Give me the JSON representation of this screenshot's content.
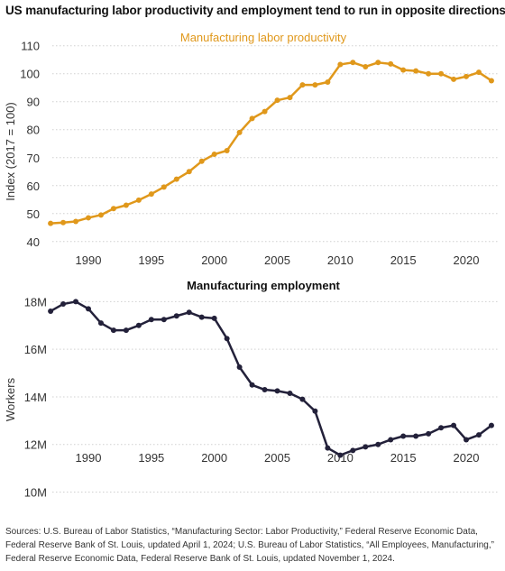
{
  "title": "US manufacturing labor productivity and employment tend to run in opposite directions",
  "sources": "Sources: U.S. Bureau of Labor Statistics, “Manufacturing Sector: Labor Productivity,” Federal Reserve Economic Data, Federal Reserve Bank of St. Louis, updated April 1, 2024; U.S. Bureau of Labor Statistics, “All Employees, Manufacturing,” Federal Reserve Economic Data, Federal Reserve Bank of St. Louis, updated November 1, 2024.",
  "colors": {
    "productivity": "#e0981b",
    "employment": "#23213a"
  },
  "chart_data": [
    {
      "type": "line",
      "title": "Manufacturing labor productivity",
      "xlabel": "",
      "ylabel": "Index (2017 = 100)",
      "ylim": [
        40,
        110
      ],
      "xlim": [
        1986,
        2022
      ],
      "yticks": [
        40,
        50,
        60,
        70,
        80,
        90,
        100,
        110
      ],
      "xticks": [
        1990,
        1995,
        2000,
        2005,
        2010,
        2015,
        2020
      ],
      "grid": true,
      "series": [
        {
          "x": [
            1987,
            1988,
            1989,
            1990,
            1991,
            1992,
            1993,
            1994,
            1995,
            1996,
            1997,
            1998,
            1999,
            2000,
            2001,
            2002,
            2003,
            2004,
            2005,
            2006,
            2007,
            2008,
            2009,
            2010,
            2011,
            2012,
            2013,
            2014,
            2015,
            2016,
            2017,
            2018,
            2019,
            2020,
            2021,
            2022
          ],
          "values": [
            46.5,
            46.8,
            47.2,
            48.5,
            49.5,
            51.8,
            53,
            54.8,
            57,
            59.5,
            62.3,
            65,
            68.7,
            71.2,
            72.5,
            79,
            84,
            86.5,
            90.5,
            91.5,
            96,
            96,
            97,
            103.3,
            104,
            102.5,
            104,
            103.5,
            101.3,
            101,
            100,
            100,
            98,
            99,
            100.5,
            97.5
          ]
        }
      ]
    },
    {
      "type": "line",
      "title": "Manufacturing employment",
      "xlabel": "",
      "ylabel": "Workers",
      "ylim": [
        10,
        18.3
      ],
      "xlim": [
        1986,
        2022
      ],
      "yticks": [
        10,
        12,
        14,
        16,
        18
      ],
      "ytick_labels": [
        "10M",
        "12M",
        "14M",
        "16M",
        "18M"
      ],
      "xticks": [
        1990,
        1995,
        2000,
        2005,
        2010,
        2015,
        2020
      ],
      "grid": true,
      "series": [
        {
          "x": [
            1987,
            1988,
            1989,
            1990,
            1991,
            1992,
            1993,
            1994,
            1995,
            1996,
            1997,
            1998,
            1999,
            2000,
            2001,
            2002,
            2003,
            2004,
            2005,
            2006,
            2007,
            2008,
            2009,
            2010,
            2011,
            2012,
            2013,
            2014,
            2015,
            2016,
            2017,
            2018,
            2019,
            2020,
            2021,
            2022
          ],
          "values": [
            17.6,
            17.9,
            18.0,
            17.7,
            17.1,
            16.8,
            16.8,
            17.0,
            17.25,
            17.25,
            17.4,
            17.55,
            17.35,
            17.3,
            16.45,
            15.25,
            14.5,
            14.3,
            14.25,
            14.15,
            13.9,
            13.4,
            11.85,
            11.55,
            11.75,
            11.9,
            12.0,
            12.2,
            12.35,
            12.35,
            12.45,
            12.7,
            12.8,
            12.2,
            12.4,
            12.8
          ]
        }
      ]
    }
  ]
}
